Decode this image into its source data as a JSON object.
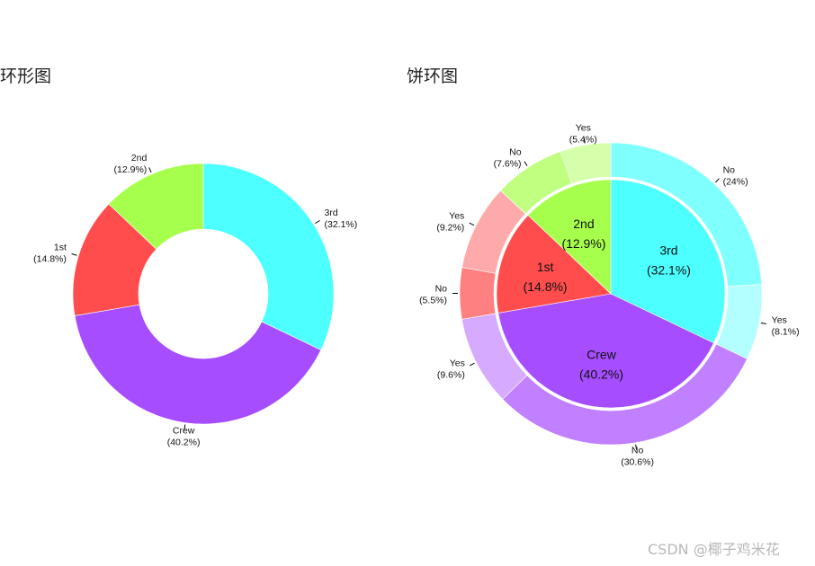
{
  "chart_data": [
    {
      "type": "pie",
      "variant": "donut",
      "title": "环形图",
      "slices": [
        {
          "label": "3rd",
          "pct_label": "(32.1%)",
          "value": 32.1,
          "color": "#4dffff"
        },
        {
          "label": "Crew",
          "pct_label": "(40.2%)",
          "value": 40.2,
          "color": "#a64dff"
        },
        {
          "label": "1st",
          "pct_label": "(14.8%)",
          "value": 14.8,
          "color": "#ff4d4d"
        },
        {
          "label": "2nd",
          "pct_label": "(12.9%)",
          "value": 12.9,
          "color": "#a6ff4d"
        }
      ]
    },
    {
      "type": "pie",
      "variant": "pie-donut",
      "title": "饼环图",
      "inner": [
        {
          "label": "3rd",
          "pct_label": "(32.1%)",
          "value": 32.1,
          "color": "#4dffff"
        },
        {
          "label": "Crew",
          "pct_label": "(40.2%)",
          "value": 40.2,
          "color": "#a64dff"
        },
        {
          "label": "1st",
          "pct_label": "(14.8%)",
          "value": 14.8,
          "color": "#ff4d4d"
        },
        {
          "label": "2nd",
          "pct_label": "(12.9%)",
          "value": 12.9,
          "color": "#a6ff4d"
        }
      ],
      "outer": [
        {
          "label": "No",
          "pct_label": "(24%)",
          "value": 24.0,
          "color": "#80ffff"
        },
        {
          "label": "Yes",
          "pct_label": "(8.1%)",
          "value": 8.1,
          "color": "#b3ffff"
        },
        {
          "label": "No",
          "pct_label": "(30.6%)",
          "value": 30.6,
          "color": "#c080ff"
        },
        {
          "label": "Yes",
          "pct_label": "(9.6%)",
          "value": 9.6,
          "color": "#d5aaff"
        },
        {
          "label": "No",
          "pct_label": "(5.5%)",
          "value": 5.5,
          "color": "#ff8080"
        },
        {
          "label": "Yes",
          "pct_label": "(9.2%)",
          "value": 9.2,
          "color": "#ffaaaa"
        },
        {
          "label": "No",
          "pct_label": "(7.6%)",
          "value": 7.6,
          "color": "#c0ff80"
        },
        {
          "label": "Yes",
          "pct_label": "(5.4%)",
          "value": 5.4,
          "color": "#d5ffaa"
        }
      ]
    }
  ],
  "watermark": "CSDN @椰子鸡米花"
}
